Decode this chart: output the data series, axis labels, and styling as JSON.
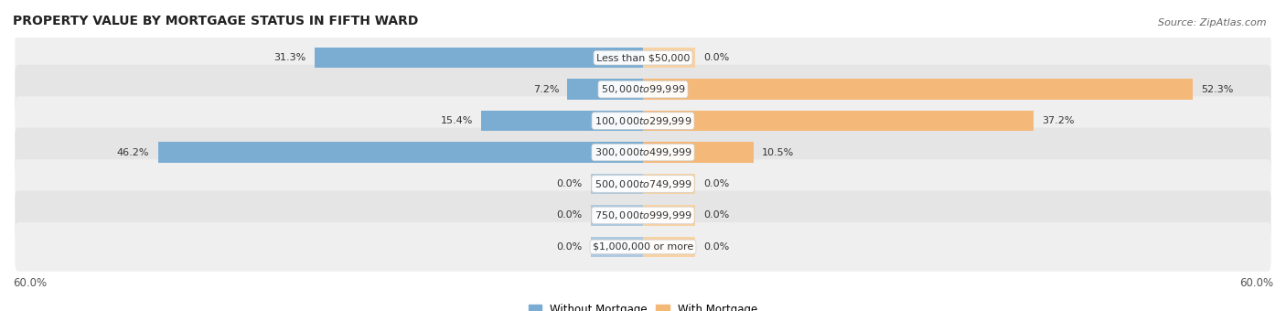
{
  "title": "PROPERTY VALUE BY MORTGAGE STATUS IN FIFTH WARD",
  "source": "Source: ZipAtlas.com",
  "categories": [
    "Less than $50,000",
    "$50,000 to $99,999",
    "$100,000 to $299,999",
    "$300,000 to $499,999",
    "$500,000 to $749,999",
    "$750,000 to $999,999",
    "$1,000,000 or more"
  ],
  "without_mortgage": [
    31.3,
    7.2,
    15.4,
    46.2,
    0.0,
    0.0,
    0.0
  ],
  "with_mortgage": [
    0.0,
    52.3,
    37.2,
    10.5,
    0.0,
    0.0,
    0.0
  ],
  "without_color": "#7badd3",
  "with_color": "#f4b878",
  "without_color_light": "#aec9e0",
  "with_color_light": "#f7d2a4",
  "row_bg_color_odd": "#efefef",
  "row_bg_color_even": "#e5e5e5",
  "xlim": 60.0,
  "stub_size": 5.0,
  "legend_left": "Without Mortgage",
  "legend_right": "With Mortgage",
  "axis_label_left": "60.0%",
  "axis_label_right": "60.0%",
  "title_fontsize": 10,
  "source_fontsize": 8,
  "label_fontsize": 8.5,
  "category_fontsize": 8,
  "value_fontsize": 8
}
